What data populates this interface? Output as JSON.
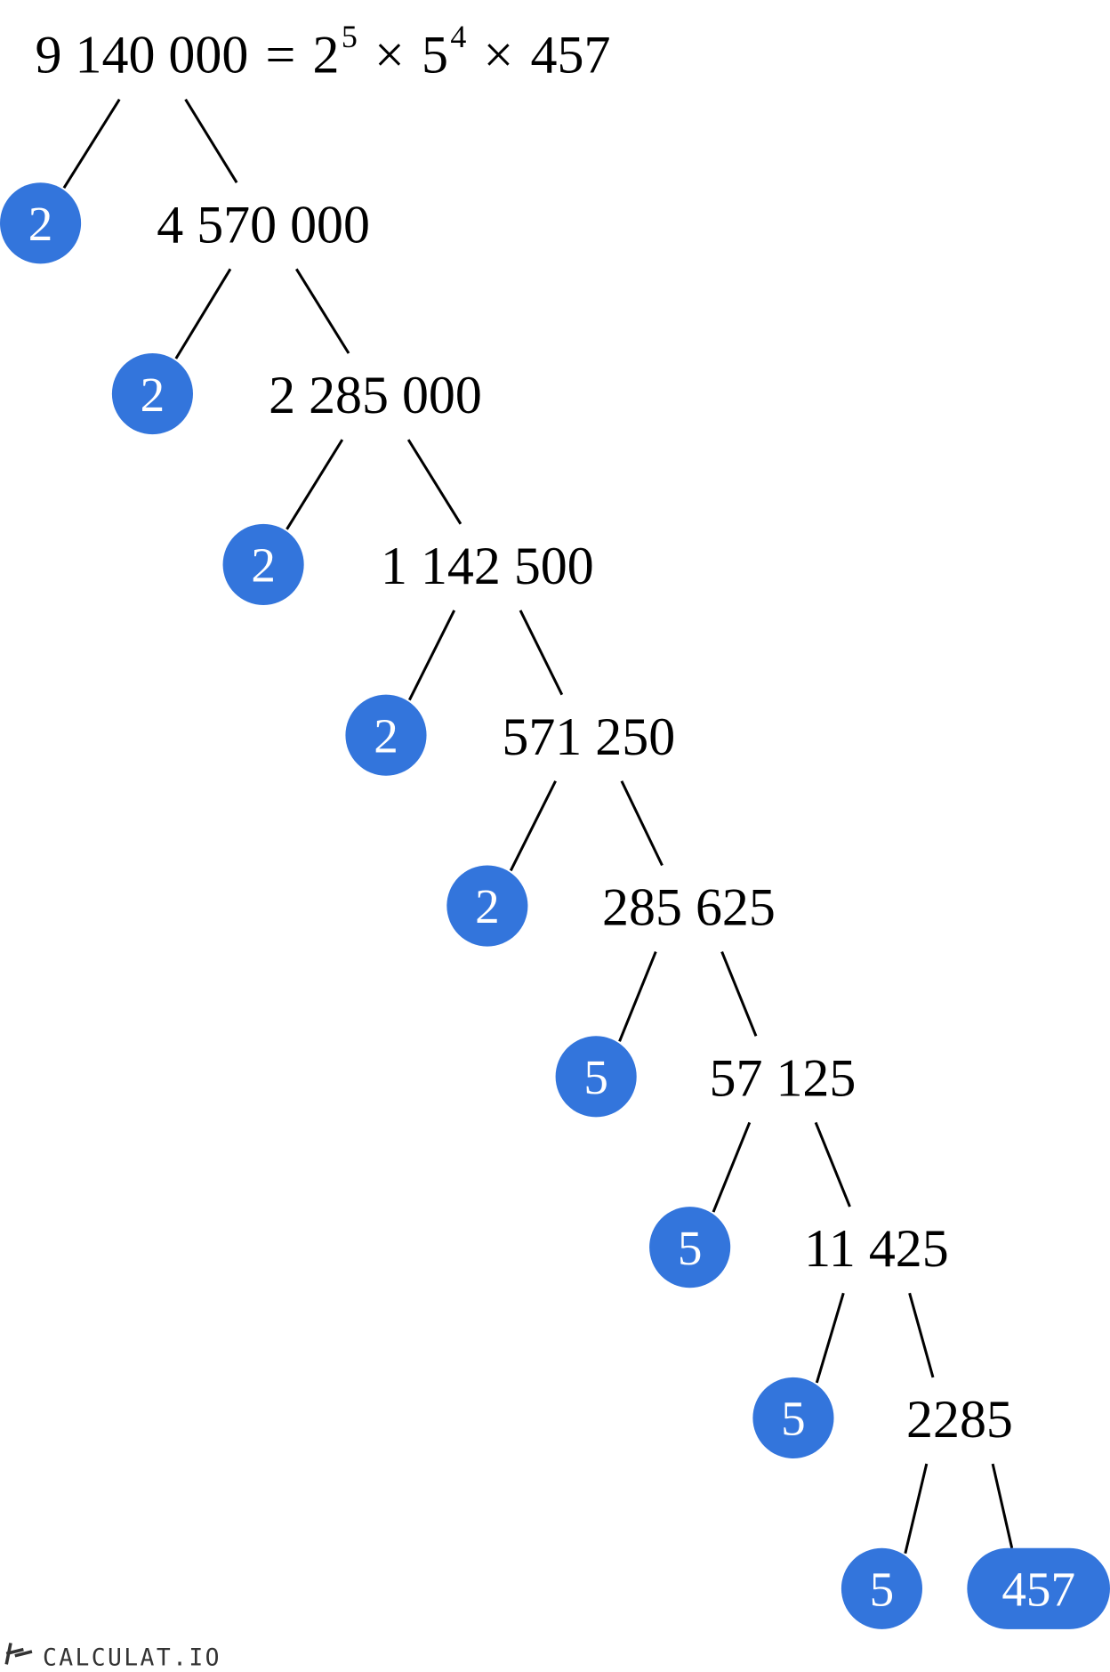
{
  "title": {
    "number": "9 140 000",
    "equals": "=",
    "factors": [
      {
        "base": "2",
        "exp": "5"
      },
      {
        "base": "5",
        "exp": "4"
      },
      {
        "base": "457",
        "exp": ""
      }
    ],
    "times": "×"
  },
  "tree": [
    {
      "factor": "2",
      "quotient": "4 570 000"
    },
    {
      "factor": "2",
      "quotient": "2 285 000"
    },
    {
      "factor": "2",
      "quotient": "1 142 500"
    },
    {
      "factor": "2",
      "quotient": "571 250"
    },
    {
      "factor": "2",
      "quotient": "285 625"
    },
    {
      "factor": "5",
      "quotient": "57 125"
    },
    {
      "factor": "5",
      "quotient": "11 425"
    },
    {
      "factor": "5",
      "quotient": "2285"
    },
    {
      "factor": "5",
      "quotient": "457",
      "quotient_is_prime": true
    }
  ],
  "colors": {
    "factor_fill": "#3375dc",
    "line": "#000000"
  },
  "logo": "CALCULAT.IO"
}
